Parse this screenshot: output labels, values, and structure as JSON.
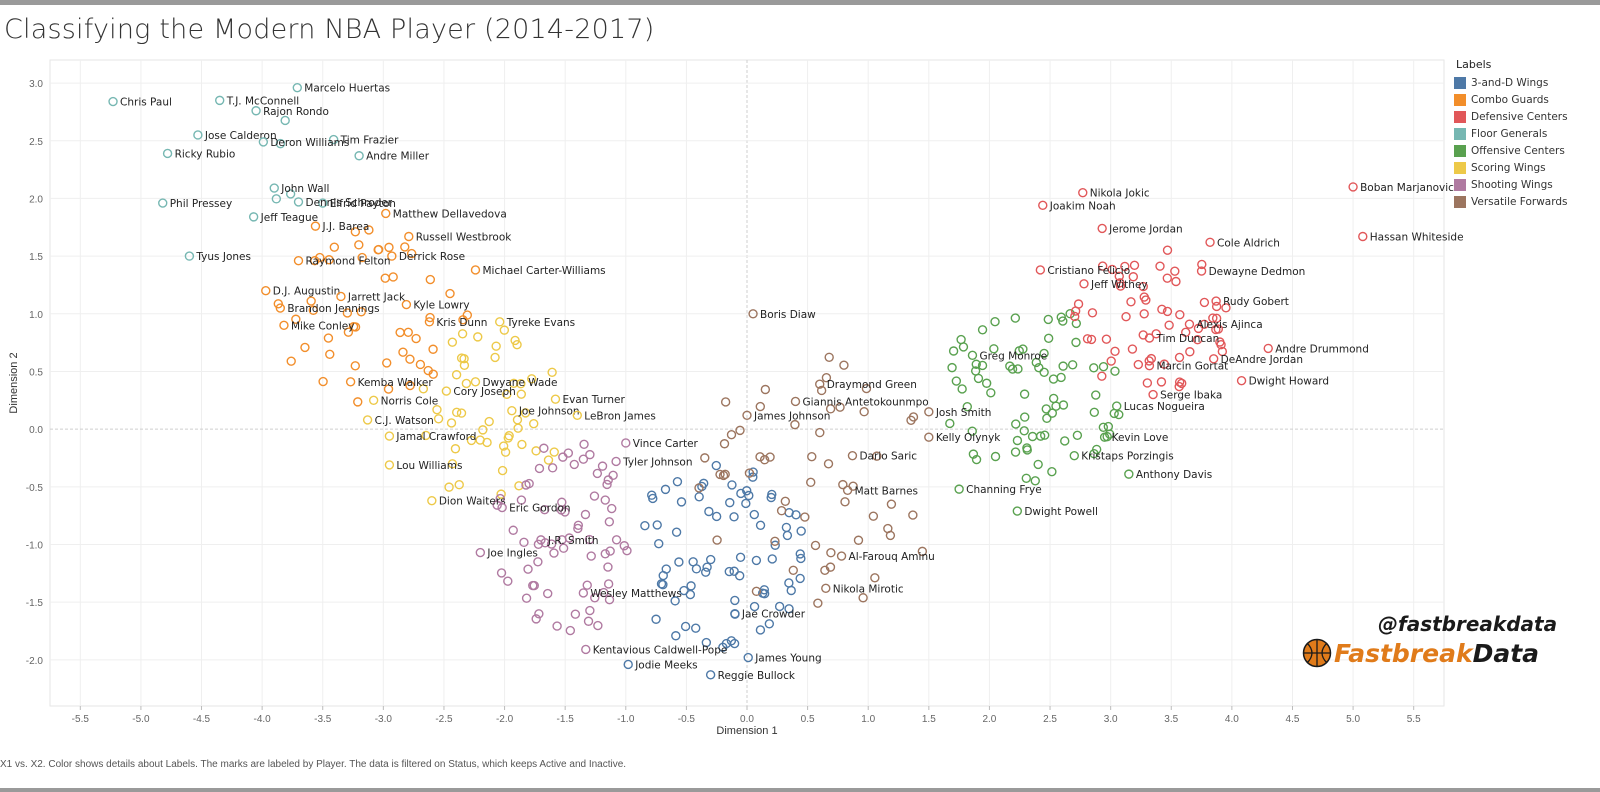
{
  "page": {
    "title": "Classifying the Modern NBA Player (2014-2017)",
    "footer": "X1 vs. X2.  Color shows details about Labels.  The marks are labeled by Player. The data is filtered on Status, which keeps Active and Inactive.",
    "handle": "@fastbreakdata",
    "brand_part1": "Fastbreak",
    "brand_part2": "Data",
    "brand_colors": {
      "orange": "#e07b1a",
      "dark": "#1a1a1a"
    }
  },
  "chart_data": {
    "type": "scatter",
    "title": "Classifying the Modern NBA Player (2014-2017)",
    "xlabel": "Dimension 1",
    "ylabel": "Dimension 2",
    "xlim": [
      -5.75,
      5.75
    ],
    "ylim": [
      -2.4,
      3.2
    ],
    "xticks": [
      "-5.5",
      "-5.0",
      "-4.5",
      "-4.0",
      "-3.5",
      "-3.0",
      "-2.5",
      "-2.0",
      "-1.5",
      "-1.0",
      "-0.5",
      "0.0",
      "0.5",
      "1.0",
      "1.5",
      "2.0",
      "2.5",
      "3.0",
      "3.5",
      "4.0",
      "4.5",
      "5.0",
      "5.5"
    ],
    "yticks": [
      "3.0",
      "2.5",
      "2.0",
      "1.5",
      "1.0",
      "0.5",
      "0.0",
      "-0.5",
      "-1.0",
      "-1.5",
      "-2.0"
    ],
    "legend_title": "Labels",
    "legend_position": "right",
    "categories": [
      {
        "name": "3-and-D Wings",
        "color": "#4e79a7"
      },
      {
        "name": "Combo Guards",
        "color": "#f28e2b"
      },
      {
        "name": "Defensive Centers",
        "color": "#e15759"
      },
      {
        "name": "Floor Generals",
        "color": "#76b7b2"
      },
      {
        "name": "Offensive Centers",
        "color": "#59a14f"
      },
      {
        "name": "Scoring Wings",
        "color": "#edc948"
      },
      {
        "name": "Shooting Wings",
        "color": "#b07aa1"
      },
      {
        "name": "Versatile Forwards",
        "color": "#9c755f"
      }
    ],
    "labeled_points": [
      {
        "player": "Chris Paul",
        "x": -5.23,
        "y": 2.84,
        "cat": 3
      },
      {
        "player": "T.J. McConnell",
        "x": -4.35,
        "y": 2.85,
        "cat": 3
      },
      {
        "player": "Marcelo Huertas",
        "x": -3.71,
        "y": 2.96,
        "cat": 3
      },
      {
        "player": "Rajon Rondo",
        "x": -4.05,
        "y": 2.76,
        "cat": 3
      },
      {
        "player": "Tim Frazier",
        "x": -3.41,
        "y": 2.51,
        "cat": 3
      },
      {
        "player": "Jose Calderon",
        "x": -4.53,
        "y": 2.55,
        "cat": 3
      },
      {
        "player": "Deron Williams",
        "x": -3.99,
        "y": 2.49,
        "cat": 3
      },
      {
        "player": "Ricky Rubio",
        "x": -4.78,
        "y": 2.39,
        "cat": 3
      },
      {
        "player": "Andre Miller",
        "x": -3.2,
        "y": 2.37,
        "cat": 3
      },
      {
        "player": "John Wall",
        "x": -3.9,
        "y": 2.09,
        "cat": 3
      },
      {
        "player": "Elfrid Payton",
        "x": -3.5,
        "y": 1.96,
        "cat": 3
      },
      {
        "player": "Dennis Schroder",
        "x": -3.7,
        "y": 1.97,
        "cat": 3
      },
      {
        "player": "Phil Pressey",
        "x": -4.82,
        "y": 1.96,
        "cat": 3
      },
      {
        "player": "Jeff Teague",
        "x": -4.07,
        "y": 1.84,
        "cat": 3
      },
      {
        "player": "Matthew Dellavedova",
        "x": -2.98,
        "y": 1.87,
        "cat": 1
      },
      {
        "player": "J.J. Barea",
        "x": -3.56,
        "y": 1.76,
        "cat": 1
      },
      {
        "player": "Russell Westbrook",
        "x": -2.79,
        "y": 1.67,
        "cat": 1
      },
      {
        "player": "Derrick Rose",
        "x": -2.93,
        "y": 1.5,
        "cat": 1
      },
      {
        "player": "Raymond Felton",
        "x": -3.7,
        "y": 1.46,
        "cat": 1
      },
      {
        "player": "Tyus Jones",
        "x": -4.6,
        "y": 1.5,
        "cat": 3
      },
      {
        "player": "Michael Carter-Williams",
        "x": -2.24,
        "y": 1.38,
        "cat": 1
      },
      {
        "player": "D.J. Augustin",
        "x": -3.97,
        "y": 1.2,
        "cat": 1
      },
      {
        "player": "Jarrett Jack",
        "x": -3.35,
        "y": 1.15,
        "cat": 1
      },
      {
        "player": "Brandon Jennings",
        "x": -3.85,
        "y": 1.05,
        "cat": 1
      },
      {
        "player": "Kyle Lowry",
        "x": -2.81,
        "y": 1.08,
        "cat": 1
      },
      {
        "player": "Mike Conley",
        "x": -3.82,
        "y": 0.9,
        "cat": 1
      },
      {
        "player": "Kris Dunn",
        "x": -2.62,
        "y": 0.93,
        "cat": 1
      },
      {
        "player": "Tyreke Evans",
        "x": -2.04,
        "y": 0.93,
        "cat": 5
      },
      {
        "player": "Kemba Walker",
        "x": -3.27,
        "y": 0.41,
        "cat": 1
      },
      {
        "player": "Dwyane Wade",
        "x": -2.24,
        "y": 0.41,
        "cat": 5
      },
      {
        "player": "Cory Joseph",
        "x": -2.48,
        "y": 0.33,
        "cat": 5
      },
      {
        "player": "Evan Turner",
        "x": -1.58,
        "y": 0.26,
        "cat": 5
      },
      {
        "player": "Norris Cole",
        "x": -3.08,
        "y": 0.25,
        "cat": 5
      },
      {
        "player": "Joe Johnson",
        "x": -1.94,
        "y": 0.16,
        "cat": 5
      },
      {
        "player": "C.J. Watson",
        "x": -3.13,
        "y": 0.08,
        "cat": 5
      },
      {
        "player": "LeBron James",
        "x": -1.4,
        "y": 0.12,
        "cat": 5
      },
      {
        "player": "Jamal Crawford",
        "x": -2.95,
        "y": -0.06,
        "cat": 5
      },
      {
        "player": "Lou Williams",
        "x": -2.95,
        "y": -0.31,
        "cat": 5
      },
      {
        "player": "Dion Waiters",
        "x": -2.6,
        "y": -0.62,
        "cat": 5
      },
      {
        "player": "Eric Gordon",
        "x": -2.02,
        "y": -0.68,
        "cat": 6
      },
      {
        "player": "J.R. Smith",
        "x": -1.7,
        "y": -0.96,
        "cat": 6
      },
      {
        "player": "Joe Ingles",
        "x": -2.2,
        "y": -1.07,
        "cat": 6
      },
      {
        "player": "Vince Carter",
        "x": -1.0,
        "y": -0.12,
        "cat": 6
      },
      {
        "player": "Tyler Johnson",
        "x": -1.08,
        "y": -0.28,
        "cat": 6
      },
      {
        "player": "Wesley Matthews",
        "x": -1.35,
        "y": -1.42,
        "cat": 6
      },
      {
        "player": "Kentavious Caldwell-Pope",
        "x": -1.33,
        "y": -1.91,
        "cat": 6
      },
      {
        "player": "Jodie Meeks",
        "x": -0.98,
        "y": -2.04,
        "cat": 0
      },
      {
        "player": "Jae Crowder",
        "x": -0.1,
        "y": -1.6,
        "cat": 0
      },
      {
        "player": "James Young",
        "x": 0.01,
        "y": -1.98,
        "cat": 0
      },
      {
        "player": "Reggie Bullock",
        "x": -0.3,
        "y": -2.13,
        "cat": 0
      },
      {
        "player": "Boris Diaw",
        "x": 0.05,
        "y": 1.0,
        "cat": 7
      },
      {
        "player": "Draymond Green",
        "x": 0.6,
        "y": 0.39,
        "cat": 7
      },
      {
        "player": "Giannis Antetokounmpo",
        "x": 0.4,
        "y": 0.24,
        "cat": 7
      },
      {
        "player": "James Johnson",
        "x": 0.0,
        "y": 0.12,
        "cat": 7
      },
      {
        "player": "Dario Saric",
        "x": 0.87,
        "y": -0.23,
        "cat": 7
      },
      {
        "player": "Matt Barnes",
        "x": 0.83,
        "y": -0.53,
        "cat": 7
      },
      {
        "player": "Al-Farouq Aminu",
        "x": 0.78,
        "y": -1.1,
        "cat": 7
      },
      {
        "player": "Nikola Mirotic",
        "x": 0.65,
        "y": -1.38,
        "cat": 7
      },
      {
        "player": "Kelly Olynyk",
        "x": 1.5,
        "y": -0.07,
        "cat": 7
      },
      {
        "player": "Josh Smith",
        "x": 1.5,
        "y": 0.15,
        "cat": 7
      },
      {
        "player": "Greg Monroe",
        "x": 1.86,
        "y": 0.64,
        "cat": 4
      },
      {
        "player": "Channing Frye",
        "x": 1.75,
        "y": -0.52,
        "cat": 4
      },
      {
        "player": "Dwight Powell",
        "x": 2.23,
        "y": -0.71,
        "cat": 4
      },
      {
        "player": "Kristaps Porzingis",
        "x": 2.7,
        "y": -0.23,
        "cat": 4
      },
      {
        "player": "Kevin Love",
        "x": 2.95,
        "y": -0.07,
        "cat": 4
      },
      {
        "player": "Anthony Davis",
        "x": 3.15,
        "y": -0.39,
        "cat": 4
      },
      {
        "player": "Lucas Nogueira",
        "x": 3.05,
        "y": 0.2,
        "cat": 4
      },
      {
        "player": "Serge Ibaka",
        "x": 3.35,
        "y": 0.3,
        "cat": 2
      },
      {
        "player": "Marcin Gortat",
        "x": 3.32,
        "y": 0.55,
        "cat": 2
      },
      {
        "player": "Tim Duncan",
        "x": 3.32,
        "y": 0.79,
        "cat": 2
      },
      {
        "player": "Dwight Howard",
        "x": 4.08,
        "y": 0.42,
        "cat": 2
      },
      {
        "player": "DeAndre Jordan",
        "x": 3.85,
        "y": 0.61,
        "cat": 2
      },
      {
        "player": "Andre Drummond",
        "x": 4.3,
        "y": 0.7,
        "cat": 2
      },
      {
        "player": "Alexis Ajinca",
        "x": 3.65,
        "y": 0.91,
        "cat": 2
      },
      {
        "player": "Rudy Gobert",
        "x": 3.87,
        "y": 1.11,
        "cat": 2
      },
      {
        "player": "Dewayne Dedmon",
        "x": 3.75,
        "y": 1.37,
        "cat": 2
      },
      {
        "player": "Cole Aldrich",
        "x": 3.82,
        "y": 1.62,
        "cat": 2
      },
      {
        "player": "Cristiano Felicio",
        "x": 2.42,
        "y": 1.38,
        "cat": 2
      },
      {
        "player": "Jeff Withey",
        "x": 2.78,
        "y": 1.26,
        "cat": 2
      },
      {
        "player": "Jerome Jordan",
        "x": 2.93,
        "y": 1.74,
        "cat": 2
      },
      {
        "player": "Nikola Jokic",
        "x": 2.77,
        "y": 2.05,
        "cat": 2
      },
      {
        "player": "Joakim Noah",
        "x": 2.44,
        "y": 1.94,
        "cat": 2
      },
      {
        "player": "Boban Marjanovic",
        "x": 5.0,
        "y": 2.1,
        "cat": 2
      },
      {
        "player": "Hassan Whiteside",
        "x": 5.08,
        "y": 1.67,
        "cat": 2
      }
    ],
    "unlabeled_clusters": [
      {
        "cat": 3,
        "x_range": [
          -4.8,
          -3.4
        ],
        "y_range": [
          1.6,
          2.9
        ],
        "count": 4
      },
      {
        "cat": 1,
        "x_range": [
          -3.9,
          -2.3
        ],
        "y_range": [
          0.2,
          1.8
        ],
        "count": 48
      },
      {
        "cat": 5,
        "x_range": [
          -2.7,
          -1.5
        ],
        "y_range": [
          -0.7,
          0.9
        ],
        "count": 50
      },
      {
        "cat": 6,
        "x_range": [
          -2.1,
          -0.9
        ],
        "y_range": [
          -1.8,
          -0.1
        ],
        "count": 68
      },
      {
        "cat": 0,
        "x_range": [
          -1.0,
          0.5
        ],
        "y_range": [
          -1.9,
          -0.3
        ],
        "count": 78
      },
      {
        "cat": 7,
        "x_range": [
          -0.4,
          1.6
        ],
        "y_range": [
          -1.6,
          0.7
        ],
        "count": 55
      },
      {
        "cat": 4,
        "x_range": [
          1.6,
          3.1
        ],
        "y_range": [
          -0.5,
          1.1
        ],
        "count": 78
      },
      {
        "cat": 2,
        "x_range": [
          2.7,
          4.0
        ],
        "y_range": [
          0.3,
          1.6
        ],
        "count": 62
      }
    ]
  }
}
